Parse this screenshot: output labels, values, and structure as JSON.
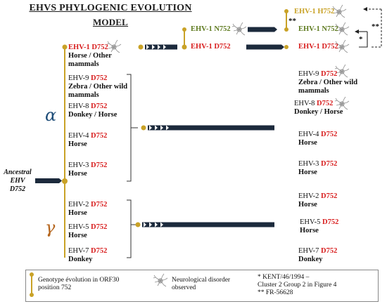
{
  "title": {
    "line1": "EHVs phylogenic evolution",
    "line2": "model"
  },
  "ancestral": {
    "line1": "Ancestral",
    "line2": "EHV",
    "line3": "D752"
  },
  "greek": {
    "alpha": "α",
    "gamma": "γ"
  },
  "colors": {
    "navy": "#1c2a3c",
    "gold": "#c9a227",
    "red": "#d81e1e",
    "green": "#5e7a1f",
    "alpha": "#1f4e79",
    "gamma": "#b5651d"
  },
  "left_column": [
    {
      "virus": "EHV-1",
      "mutation": "D752",
      "host": "Horse / Other mammals",
      "neuro": true
    },
    {
      "virus": "EHV-9",
      "mutation": "D752",
      "host": "Zebra / Other wild mammals",
      "neuro": false
    },
    {
      "virus": "EHV-8",
      "mutation": "D752",
      "host": "Donkey / Horse",
      "neuro": false
    },
    {
      "virus": "EHV-4",
      "mutation": "D752",
      "host": "Horse",
      "neuro": false
    },
    {
      "virus": "EHV-3",
      "mutation": "D752",
      "host": "Horse",
      "neuro": false
    },
    {
      "virus": "EHV-2",
      "mutation": "D752",
      "host": "Horse",
      "neuro": false
    },
    {
      "virus": "EHV-5",
      "mutation": "D752",
      "host": "Horse",
      "neuro": false
    },
    {
      "virus": "EHV-7",
      "mutation": "D752",
      "host": "Donkey",
      "neuro": false
    }
  ],
  "middle_nodes": [
    {
      "label": "EHV-1 N752",
      "neuro": true
    },
    {
      "label": "EHV-1 D752",
      "neuro": false
    }
  ],
  "right_column": [
    {
      "virus": "EHV-1",
      "mutation": "H752",
      "host": "",
      "neuro": true
    },
    {
      "virus": "EHV-1",
      "mutation": "N752",
      "host": "",
      "neuro": true
    },
    {
      "virus": "EHV-1",
      "mutation": "D752",
      "host": "",
      "neuro": true
    },
    {
      "virus": "EHV-9",
      "mutation": "D752",
      "host": "Zebra / Other wild mammals",
      "neuro": true
    },
    {
      "virus": "EHV-8",
      "mutation": "D752",
      "host": "Donkey / Horse",
      "neuro": true
    },
    {
      "virus": "EHV-4",
      "mutation": "D752",
      "host": "Horse",
      "neuro": false
    },
    {
      "virus": "EHV-3",
      "mutation": "D752",
      "host": "Horse",
      "neuro": false
    },
    {
      "virus": "EHV-2",
      "mutation": "D752",
      "host": "Horse",
      "neuro": false
    },
    {
      "virus": "EHV-5",
      "mutation": "D752",
      "host": "Horse",
      "neuro": false
    },
    {
      "virus": "EHV-7",
      "mutation": "D752",
      "host": "Donkey",
      "neuro": false
    }
  ],
  "stars": {
    "single": "*",
    "double": "**",
    "double_right": "**"
  },
  "legend": {
    "genotype": "Genotype évolution in ORF30 position 752",
    "neuro": "Neurological disorder observed",
    "note1": "* KENT/46/1994 –",
    "note2": "Cluster 2 Group 2 in Figure 4",
    "note3": "** FR-56628"
  }
}
